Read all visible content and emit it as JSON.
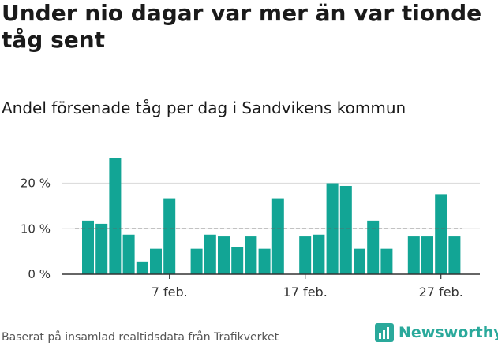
{
  "title": "Under nio dagar var mer än var tionde tåg sent",
  "subtitle": "Andel försenade tåg per dag i Sandvikens kommun",
  "footer": "Baserat på insamlad realtidsdata från Trafikverket",
  "brand": "Newsworthy",
  "colors": {
    "bar": "#12a595",
    "reference": "#666666",
    "grid": "#dddddd",
    "brand": "#2aa99b"
  },
  "chart_data": {
    "type": "bar",
    "x": [
      "2025-02-01",
      "2025-02-02",
      "2025-02-03",
      "2025-02-04",
      "2025-02-05",
      "2025-02-06",
      "2025-02-07",
      "2025-02-08",
      "2025-02-09",
      "2025-02-10",
      "2025-02-11",
      "2025-02-12",
      "2025-02-13",
      "2025-02-14",
      "2025-02-15",
      "2025-02-16",
      "2025-02-17",
      "2025-02-18",
      "2025-02-19",
      "2025-02-20",
      "2025-02-21",
      "2025-02-22",
      "2025-02-23",
      "2025-02-24",
      "2025-02-25",
      "2025-02-26",
      "2025-02-27",
      "2025-02-28"
    ],
    "values": [
      11.8,
      11.1,
      25.6,
      8.7,
      2.8,
      5.6,
      16.7,
      null,
      5.6,
      8.7,
      8.3,
      5.9,
      8.3,
      5.6,
      16.7,
      null,
      8.3,
      8.7,
      20.0,
      19.4,
      5.6,
      11.8,
      5.6,
      null,
      8.3,
      8.3,
      17.6,
      8.3
    ],
    "reference_line": 10,
    "xticks": [
      "7 feb.",
      "17 feb.",
      "27 feb."
    ],
    "xtick_dates": [
      "2025-02-07",
      "2025-02-17",
      "2025-02-27"
    ],
    "yticks": [
      "0 %",
      "10 %",
      "20 %"
    ],
    "ytick_values": [
      0,
      10,
      20
    ],
    "ylim": [
      0,
      26.5
    ],
    "xlabel": "",
    "ylabel": "",
    "grid": true
  }
}
